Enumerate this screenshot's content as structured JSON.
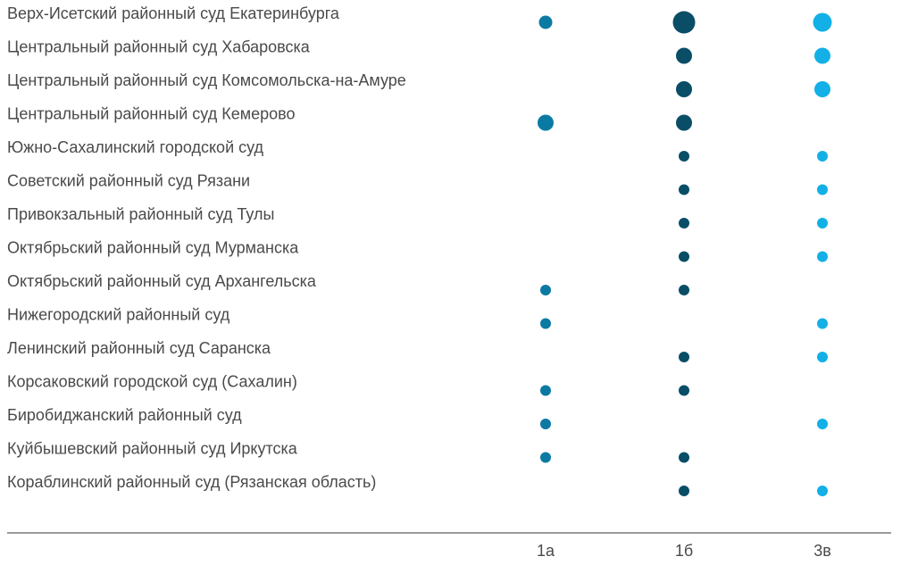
{
  "chart_data": {
    "type": "scatter",
    "title": "",
    "rows": [
      "Верх-Исетский районный суд Екатеринбурга",
      "Центральный районный суд Хабаровска",
      "Центральный районный суд Комсомольска-на-Амуре",
      "Центральный районный суд Кемерово",
      "Южно-Сахалинский городской суд",
      "Советский районный суд Рязани",
      "Привокзальный районный суд Тулы",
      "Октябрьский районный суд Мурманска",
      "Октябрьский районный суд Архангельска",
      "Нижегородский районный суд",
      "Ленинский районный суд Саранска",
      "Корсаковский городской суд (Сахалин)",
      "Биробиджанский районный суд",
      "Куйбышевский районный суд Иркутска",
      "Кораблинский районный суд (Рязанская область)"
    ],
    "columns": [
      "1а",
      "1б",
      "3в"
    ],
    "series": [
      {
        "name": "1а",
        "color": "#0b7aa3",
        "values": [
          2,
          0,
          0,
          3,
          0,
          0,
          0,
          0,
          1,
          1,
          0,
          1,
          1,
          1,
          0
        ]
      },
      {
        "name": "1б",
        "color": "#0a4d66",
        "values": [
          5,
          3,
          3,
          3,
          1,
          1,
          1,
          1,
          1,
          0,
          1,
          1,
          0,
          1,
          1
        ]
      },
      {
        "name": "3в",
        "color": "#12b0e6",
        "values": [
          4,
          3,
          3,
          0,
          1,
          1,
          1,
          1,
          0,
          1,
          1,
          0,
          1,
          0,
          1
        ]
      }
    ],
    "xlabel": "",
    "ylabel": ""
  }
}
